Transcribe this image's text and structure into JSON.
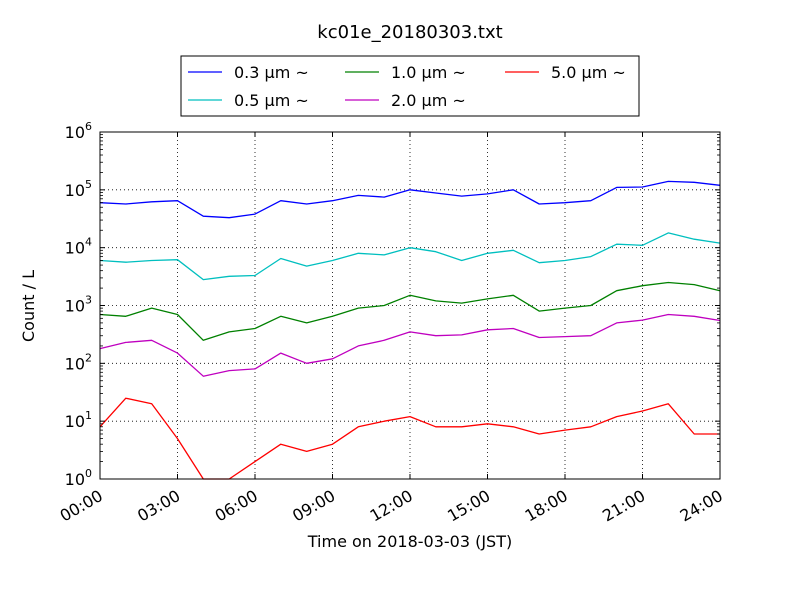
{
  "chart_data": {
    "type": "line",
    "title": "kc01e_20180303.txt",
    "xlabel": "Time on 2018-03-03 (JST)",
    "ylabel": "Count / L",
    "yscale": "log",
    "ylim": [
      1,
      1000000
    ],
    "xlim": [
      "00:00",
      "24:00"
    ],
    "x_ticks": [
      "00:00",
      "03:00",
      "06:00",
      "09:00",
      "12:00",
      "15:00",
      "18:00",
      "21:00",
      "24:00"
    ],
    "y_ticks": [
      {
        "value": 1,
        "base": "10",
        "exp": "0"
      },
      {
        "value": 10,
        "base": "10",
        "exp": "1"
      },
      {
        "value": 100,
        "base": "10",
        "exp": "2"
      },
      {
        "value": 1000,
        "base": "10",
        "exp": "3"
      },
      {
        "value": 10000,
        "base": "10",
        "exp": "4"
      },
      {
        "value": 100000,
        "base": "10",
        "exp": "5"
      },
      {
        "value": 1000000,
        "base": "10",
        "exp": "6"
      }
    ],
    "grid": true,
    "legend_position": "top",
    "x": [
      "00:00",
      "01:00",
      "02:00",
      "03:00",
      "04:00",
      "05:00",
      "06:00",
      "07:00",
      "08:00",
      "09:00",
      "10:00",
      "11:00",
      "12:00",
      "13:00",
      "14:00",
      "15:00",
      "16:00",
      "17:00",
      "18:00",
      "19:00",
      "20:00",
      "21:00",
      "22:00",
      "23:00",
      "24:00"
    ],
    "series": [
      {
        "name": "0.3 μm ~",
        "color": "#0000ff",
        "values": [
          60000,
          57000,
          62000,
          65000,
          35000,
          33000,
          38000,
          65000,
          57000,
          65000,
          80000,
          75000,
          100000,
          88000,
          78000,
          85000,
          100000,
          57000,
          60000,
          65000,
          110000,
          112000,
          140000,
          135000,
          120000
        ]
      },
      {
        "name": "0.5 μm ~",
        "color": "#00bfbf",
        "values": [
          6000,
          5600,
          6000,
          6200,
          2800,
          3200,
          3300,
          6500,
          4800,
          6000,
          8000,
          7500,
          10000,
          8500,
          6000,
          8000,
          9000,
          5500,
          6000,
          7000,
          11500,
          11000,
          18000,
          14000,
          12000
        ]
      },
      {
        "name": "1.0 μm ~",
        "color": "#008000",
        "values": [
          700,
          650,
          900,
          700,
          250,
          350,
          400,
          650,
          500,
          650,
          900,
          1000,
          1500,
          1200,
          1100,
          1300,
          1500,
          800,
          900,
          1000,
          1800,
          2200,
          2500,
          2300,
          1800
        ]
      },
      {
        "name": "2.0 μm ~",
        "color": "#bf00bf",
        "values": [
          180,
          230,
          250,
          150,
          60,
          75,
          80,
          150,
          100,
          120,
          200,
          250,
          350,
          300,
          310,
          380,
          400,
          280,
          290,
          300,
          500,
          560,
          700,
          650,
          550
        ]
      },
      {
        "name": "5.0 μm ~",
        "color": "#ff0000",
        "values": [
          8,
          25,
          20,
          5,
          1,
          1,
          2,
          4,
          3,
          4,
          8,
          10,
          12,
          8,
          8,
          9,
          8,
          6,
          7,
          8,
          12,
          15,
          20,
          6,
          6
        ]
      }
    ]
  }
}
